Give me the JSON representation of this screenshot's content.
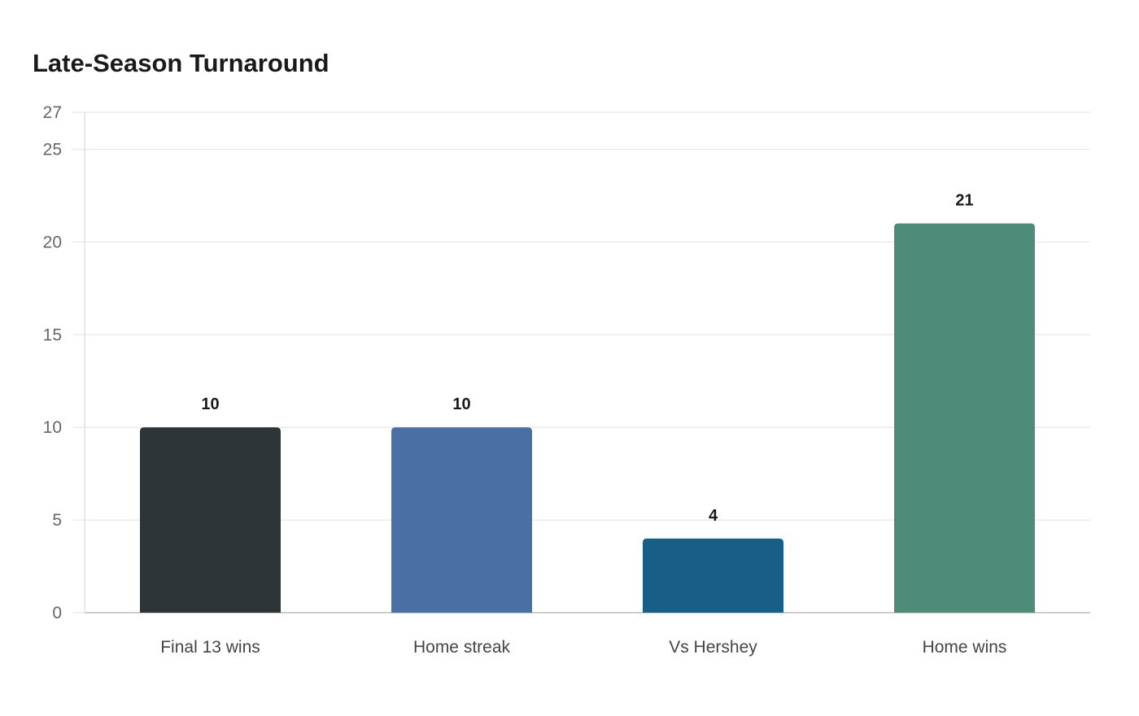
{
  "chart_data": {
    "type": "bar",
    "title": "Late-Season Turnaround",
    "categories": [
      "Final 13 wins",
      "Home streak",
      "Vs Hershey",
      "Home wins"
    ],
    "values": [
      10,
      10,
      4,
      21
    ],
    "data_labels": [
      "10",
      "10",
      "4",
      "21"
    ],
    "colors": [
      "#2d3538",
      "#4a6fa5",
      "#175f87",
      "#4e8c79"
    ],
    "xlabel": "",
    "ylabel": "",
    "ylim": [
      0,
      27
    ],
    "yticks": [
      0,
      5,
      10,
      15,
      20,
      25,
      27
    ],
    "grid": true,
    "legend": "none"
  }
}
